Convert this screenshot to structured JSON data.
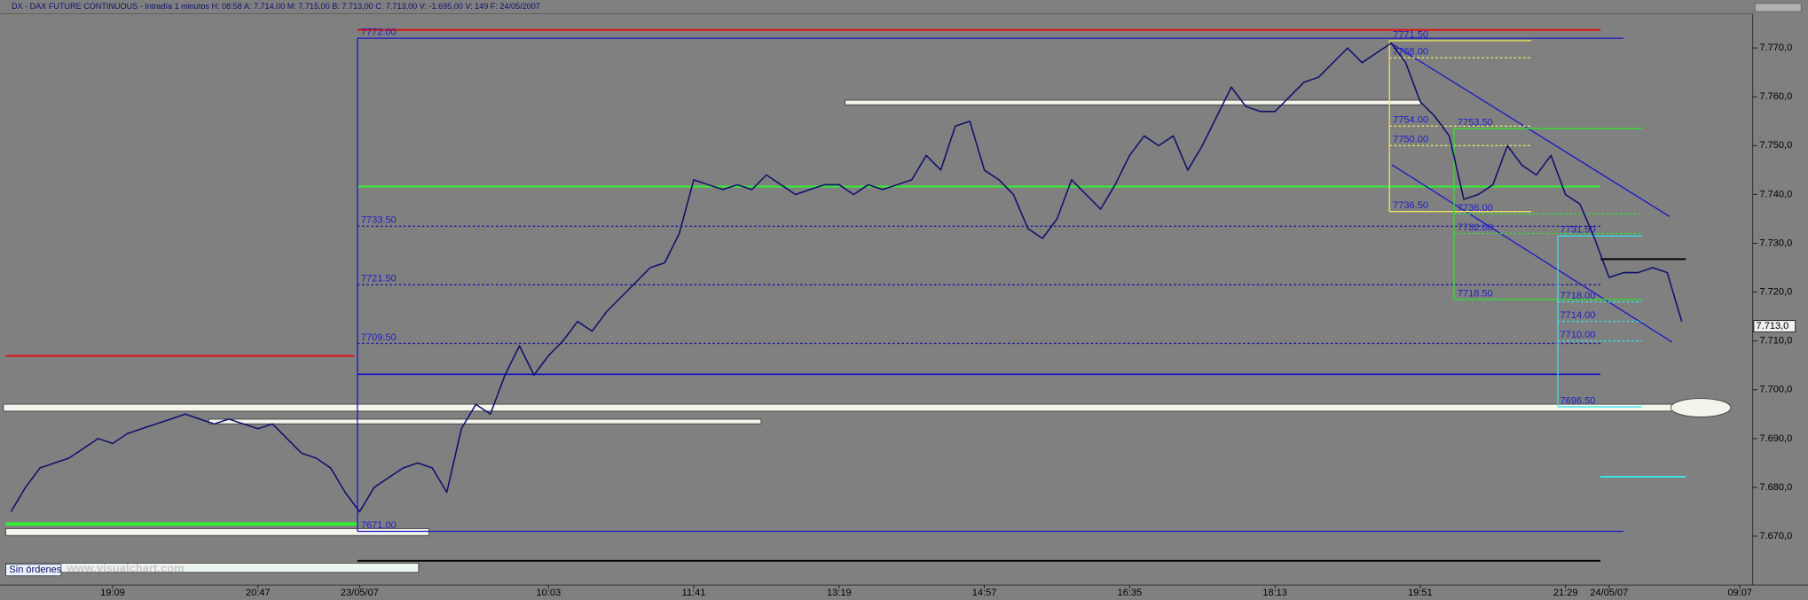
{
  "chart_data": {
    "type": "line",
    "title": "DX - DAX FUTURE CONTINUOUS - Intradía 1 minutos  H: 08:58  A: 7.714,00  M: 7.715,00  B: 7.713,00  C: 7.713,00  V: -1.695,00  V: 149  F: 24/05/2007",
    "categories": [
      null,
      null,
      null,
      null,
      null,
      null,
      null,
      "19:09",
      null,
      null,
      null,
      null,
      null,
      null,
      null,
      null,
      null,
      "20:47",
      null,
      null,
      null,
      null,
      null,
      null,
      "23/05/07",
      null,
      null,
      null,
      null,
      null,
      null,
      null,
      null,
      null,
      null,
      null,
      null,
      "10:03",
      null,
      null,
      null,
      null,
      null,
      null,
      null,
      null,
      null,
      "11:41",
      null,
      null,
      null,
      null,
      null,
      null,
      null,
      null,
      null,
      "13:19",
      null,
      null,
      null,
      null,
      null,
      null,
      null,
      null,
      null,
      "14:57",
      null,
      null,
      null,
      null,
      null,
      null,
      null,
      null,
      null,
      "16:35",
      null,
      null,
      null,
      null,
      null,
      null,
      null,
      null,
      null,
      "18:13",
      null,
      null,
      null,
      null,
      null,
      null,
      null,
      null,
      null,
      "19:51",
      null,
      null,
      null,
      null,
      null,
      null,
      null,
      null,
      null,
      "21:29",
      null,
      null,
      "24/05/07",
      null,
      null,
      null,
      null,
      null,
      null,
      null,
      null,
      "09:07"
    ],
    "series": [
      {
        "name": "DX",
        "color": "#10106e",
        "values": [
          7675,
          7680,
          7684,
          7685,
          7686,
          7688,
          7690,
          7689,
          7691,
          7692,
          7693,
          7694,
          7695,
          7694,
          7693,
          7694,
          7693,
          7692,
          7693,
          7690,
          7687,
          7686,
          7684,
          7679,
          7675,
          7680,
          7682,
          7684,
          7685,
          7684,
          7679,
          7692,
          7697,
          7695,
          7703,
          7709,
          7703,
          7707,
          7710,
          7714,
          7712,
          7716,
          7719,
          7722,
          7725,
          7726,
          7732,
          7743,
          7742,
          7741,
          7742,
          7741,
          7744,
          7742,
          7740,
          7741,
          7742,
          7742,
          7740,
          7742,
          7741,
          7742,
          7743,
          7748,
          7745,
          7754,
          7755,
          7745,
          7743,
          7740,
          7733,
          7731,
          7735,
          7743,
          7740,
          7737,
          7742,
          7748,
          7752,
          7750,
          7752,
          7745,
          7750,
          7756,
          7762,
          7758,
          7757,
          7757,
          7760,
          7763,
          7764,
          7767,
          7770,
          7767,
          7769,
          7771,
          7767,
          7759,
          7756,
          7752,
          7739,
          7740,
          7742,
          7750,
          7746,
          7744,
          7748,
          7740,
          7738,
          7731,
          7723,
          7724,
          7724,
          7725,
          7724,
          7714,
          null,
          null,
          null,
          null
        ]
      }
    ],
    "ylim": [
      7660,
      7777
    ],
    "yticks": [
      {
        "value": 7670,
        "label": "7.670,0"
      },
      {
        "value": 7680,
        "label": "7.680,0"
      },
      {
        "value": 7690,
        "label": "7.690,0"
      },
      {
        "value": 7700,
        "label": "7.700,0"
      },
      {
        "value": 7710,
        "label": "7.710,0"
      },
      {
        "value": 7720,
        "label": "7.720,0"
      },
      {
        "value": 7730,
        "label": "7.730,0"
      },
      {
        "value": 7740,
        "label": "7.740,0"
      },
      {
        "value": 7750,
        "label": "7.750,0"
      },
      {
        "value": 7760,
        "label": "7.760,0"
      },
      {
        "value": 7770,
        "label": "7.770,0"
      }
    ],
    "levels": [
      {
        "value": 7772,
        "label": "7772.00",
        "color": "#1818c8"
      },
      {
        "value": 7733.5,
        "label": "7733.50",
        "color": "#1818a0"
      },
      {
        "value": 7721.5,
        "label": "7721.50",
        "color": "#1818a0"
      },
      {
        "value": 7709.5,
        "label": "7709.50",
        "color": "#1818a0"
      },
      {
        "value": 7671,
        "label": "7671.00",
        "color": "#1818c8"
      },
      {
        "value": 7771.5,
        "label": "7771.50",
        "color": "#e8e860"
      },
      {
        "value": 7768,
        "label": "7768.00",
        "color": "#e8e860"
      },
      {
        "value": 7754,
        "label": "7754.00",
        "color": "#e8e860"
      },
      {
        "value": 7750,
        "label": "7750.00",
        "color": "#e8e860"
      },
      {
        "value": 7736.5,
        "label": "7736.50",
        "color": "#e8e860"
      },
      {
        "value": 7753.5,
        "label": "7753.50",
        "color": "#30e030"
      },
      {
        "value": 7736,
        "label": "7736.00",
        "color": "#30e030"
      },
      {
        "value": 7732,
        "label": "7732.00",
        "color": "#30e030"
      },
      {
        "value": 7718.5,
        "label": "7718.50",
        "color": "#30e030"
      },
      {
        "value": 7731.5,
        "label": "7731.50",
        "color": "#30e8f0"
      },
      {
        "value": 7718,
        "label": "7718.00",
        "color": "#30e8f0"
      },
      {
        "value": 7714,
        "label": "7714.00",
        "color": "#30e8f0"
      },
      {
        "value": 7710,
        "label": "7710.00",
        "color": "#30e8f0"
      },
      {
        "value": 7696.5,
        "label": "7696.50",
        "color": "#30e8f0"
      }
    ],
    "last_price": {
      "value": 7713,
      "label": "7.713,0"
    },
    "status": "Sin órdenes",
    "watermark": "www.visualchart.com"
  }
}
